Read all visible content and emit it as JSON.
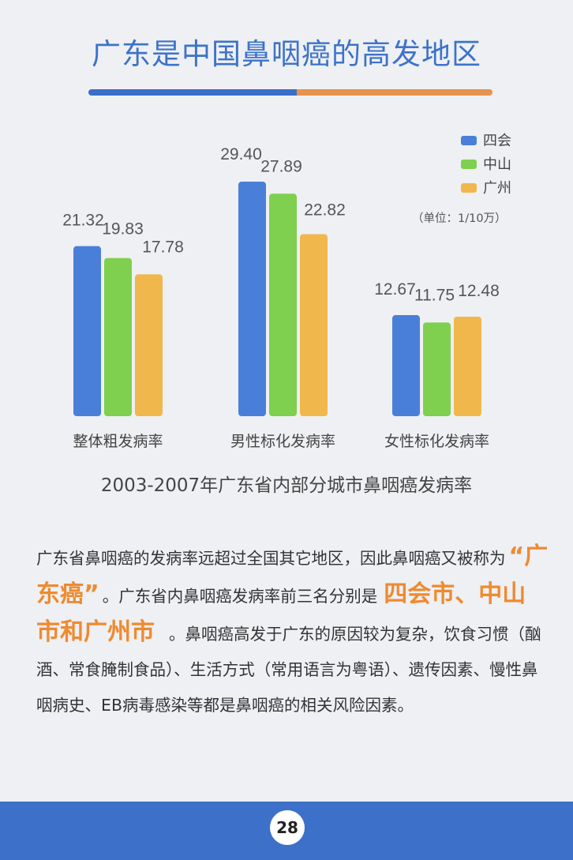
{
  "page": {
    "title": "广东是中国鼻咽癌的高发地区",
    "caption": "2003-2007年广东省内部分城市鼻咽癌发病率",
    "page_number": "28",
    "accent_blue": "#3b6ec8",
    "accent_orange": "#e7924e"
  },
  "chart_data": {
    "type": "bar",
    "categories": [
      "整体粗发病率",
      "男性标化发病率",
      "女性标化发病率"
    ],
    "series": [
      {
        "name": "四会",
        "color": "#4a7fd9",
        "values": [
          21.32,
          29.4,
          12.67
        ]
      },
      {
        "name": "中山",
        "color": "#7ed04e",
        "values": [
          19.83,
          27.89,
          11.75
        ]
      },
      {
        "name": "广州",
        "color": "#f0b84c",
        "values": [
          17.78,
          22.82,
          12.48
        ]
      }
    ],
    "unit_note": "（单位：1/10万）",
    "legend_position": "top-right",
    "ylim": [
      0,
      35
    ],
    "grid": false
  },
  "text": {
    "p1": "广东省鼻咽癌的发病率远超过全国其它地区，因此鼻咽癌又被称为",
    "hl1": "“广东癌”",
    "p2": "。广东省内鼻咽癌发病率前三名分别是",
    "hl2": "四会市、中山市和广州市",
    "p3": "。鼻咽癌高发于广东的原因较为复杂，饮食习惯（酗酒、常食腌制食品）、生活方式（常用语言为粤语）、遗传因素、慢性鼻咽病史、EB病毒感染等都是鼻咽癌的相关风险因素。"
  }
}
